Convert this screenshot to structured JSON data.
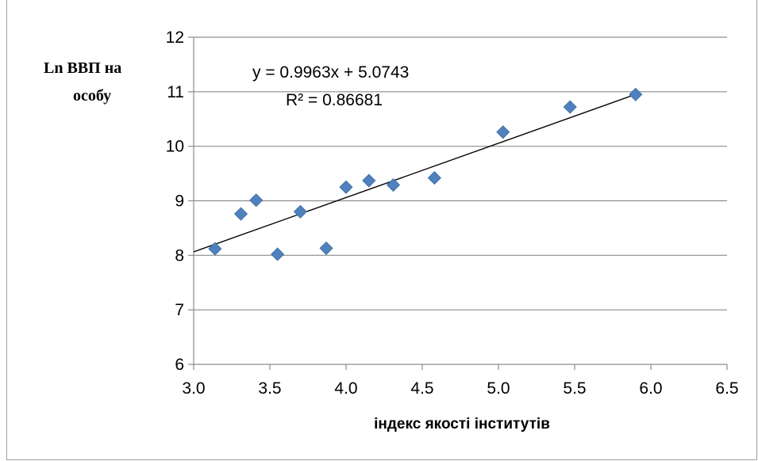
{
  "chart_data": {
    "type": "scatter",
    "ylabel_lines": [
      "Ln ВВП на",
      "особу"
    ],
    "xlabel": "індекс якості інститутів",
    "xlim": [
      3.0,
      6.5
    ],
    "ylim": [
      6,
      12
    ],
    "x_ticks": [
      "3.0",
      "3.5",
      "4.0",
      "4.5",
      "5.0",
      "5.5",
      "6.0",
      "6.5"
    ],
    "y_ticks": [
      "6",
      "7",
      "8",
      "9",
      "10",
      "11",
      "12"
    ],
    "grid": "horizontal",
    "marker_color": "#4f81bd",
    "trendline": {
      "slope": 0.9963,
      "intercept": 5.0743,
      "x_range": [
        3.0,
        5.9
      ],
      "equation": "y = 0.9963x + 5.0743",
      "r_squared": "R² = 0.86681"
    },
    "points": [
      {
        "x": 3.14,
        "y": 8.12
      },
      {
        "x": 3.31,
        "y": 8.76
      },
      {
        "x": 3.41,
        "y": 9.01
      },
      {
        "x": 3.55,
        "y": 8.02
      },
      {
        "x": 3.7,
        "y": 8.8
      },
      {
        "x": 3.87,
        "y": 8.13
      },
      {
        "x": 4.0,
        "y": 9.25
      },
      {
        "x": 4.15,
        "y": 9.37
      },
      {
        "x": 4.31,
        "y": 9.29
      },
      {
        "x": 4.58,
        "y": 9.42
      },
      {
        "x": 5.03,
        "y": 10.26
      },
      {
        "x": 5.47,
        "y": 10.72
      },
      {
        "x": 5.9,
        "y": 10.95
      }
    ]
  }
}
